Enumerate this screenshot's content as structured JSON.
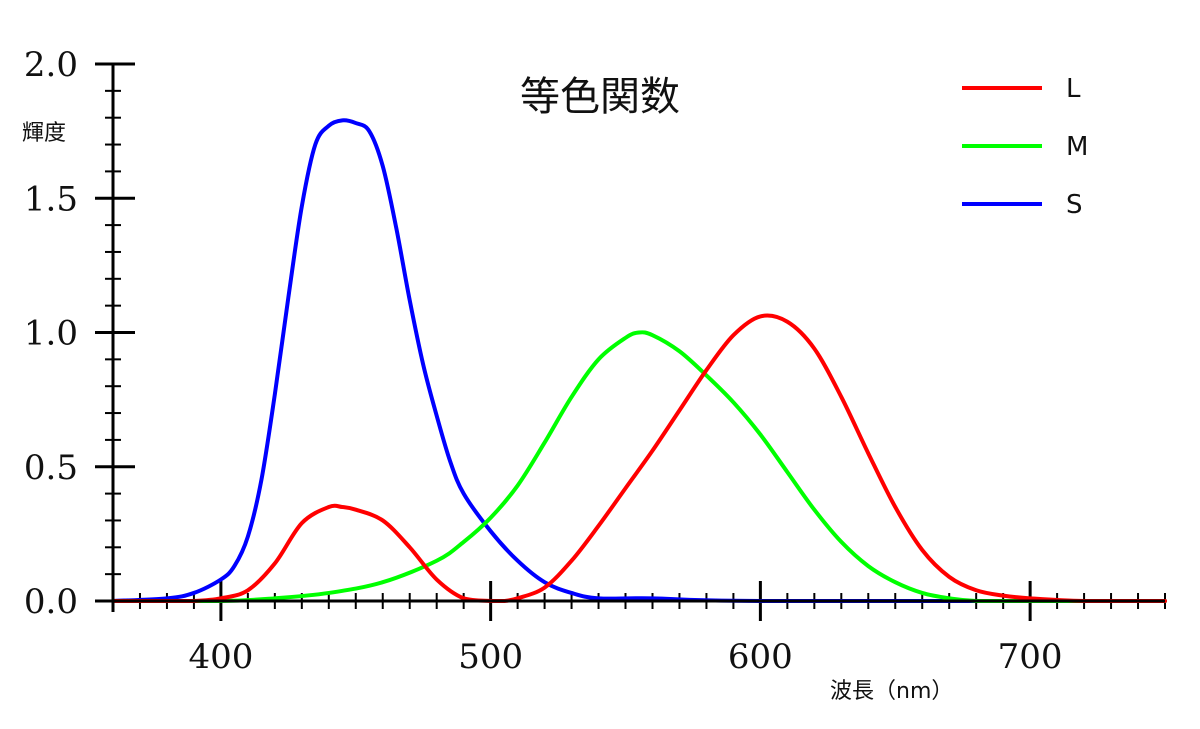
{
  "chart_data": {
    "type": "line",
    "title": "等色関数",
    "xlabel": "波長（nm）",
    "ylabel": "輝度",
    "xlim": [
      360,
      750
    ],
    "ylim": [
      0,
      2.0
    ],
    "x_ticks": [
      400,
      500,
      600,
      700
    ],
    "x_tick_labels": [
      "400",
      "500",
      "600",
      "700"
    ],
    "y_ticks": [
      0.0,
      0.5,
      1.0,
      1.5,
      2.0
    ],
    "y_tick_labels": [
      "0.0",
      "0.5",
      "1.0",
      "1.5",
      "2.0"
    ],
    "x_minor_step": 10,
    "y_minor_step": 0.1,
    "legend_position": "top-right",
    "series": [
      {
        "name": "L",
        "color": "#ff0000",
        "x": [
          360,
          380,
          390,
          400,
          410,
          420,
          430,
          440,
          445,
          450,
          460,
          470,
          480,
          490,
          500,
          505,
          510,
          520,
          530,
          540,
          550,
          560,
          570,
          580,
          590,
          600,
          610,
          620,
          630,
          640,
          650,
          660,
          670,
          680,
          690,
          700,
          720,
          750
        ],
        "y": [
          0,
          0,
          0,
          0.01,
          0.04,
          0.14,
          0.29,
          0.35,
          0.35,
          0.34,
          0.3,
          0.2,
          0.08,
          0.01,
          0,
          0,
          0.01,
          0.05,
          0.15,
          0.28,
          0.42,
          0.56,
          0.71,
          0.86,
          0.99,
          1.06,
          1.04,
          0.94,
          0.76,
          0.55,
          0.35,
          0.19,
          0.09,
          0.04,
          0.02,
          0.01,
          0,
          0
        ]
      },
      {
        "name": "M",
        "color": "#00ff00",
        "x": [
          360,
          400,
          420,
          440,
          460,
          480,
          490,
          500,
          510,
          520,
          530,
          540,
          550,
          555,
          560,
          570,
          580,
          590,
          600,
          610,
          620,
          630,
          640,
          650,
          660,
          670,
          680,
          700,
          750
        ],
        "y": [
          0,
          0,
          0.01,
          0.03,
          0.07,
          0.15,
          0.22,
          0.31,
          0.43,
          0.59,
          0.76,
          0.9,
          0.98,
          1.0,
          0.99,
          0.93,
          0.84,
          0.74,
          0.62,
          0.48,
          0.34,
          0.22,
          0.13,
          0.07,
          0.03,
          0.01,
          0,
          0,
          0
        ]
      },
      {
        "name": "S",
        "color": "#0000ff",
        "x": [
          360,
          380,
          390,
          400,
          405,
          410,
          415,
          420,
          425,
          430,
          435,
          440,
          445,
          450,
          455,
          460,
          465,
          470,
          475,
          480,
          485,
          490,
          500,
          510,
          520,
          530,
          540,
          560,
          600,
          750
        ],
        "y": [
          0,
          0.01,
          0.03,
          0.08,
          0.13,
          0.24,
          0.45,
          0.77,
          1.13,
          1.47,
          1.7,
          1.77,
          1.79,
          1.78,
          1.75,
          1.62,
          1.39,
          1.12,
          0.88,
          0.69,
          0.52,
          0.4,
          0.26,
          0.15,
          0.07,
          0.03,
          0.01,
          0.01,
          0,
          0
        ]
      }
    ]
  }
}
